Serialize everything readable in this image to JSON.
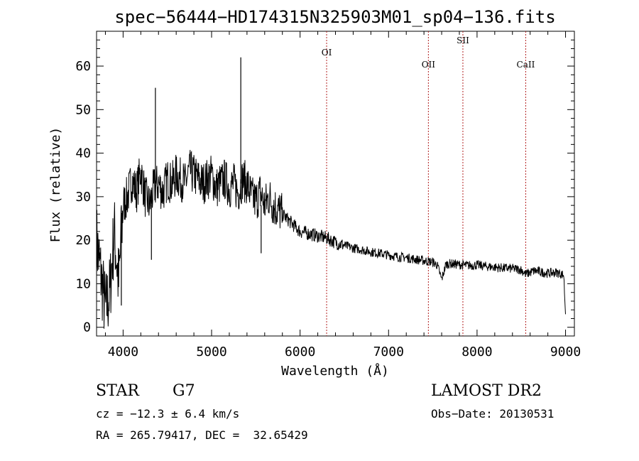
{
  "chart_data": {
    "type": "line",
    "title": "spec−56444−HD174315N325903M01_sp04−136.fits",
    "xlabel": "Wavelength (Å)",
    "ylabel": "Flux (relative)",
    "xlim": [
      3700,
      9100
    ],
    "ylim": [
      -2,
      68
    ],
    "x_ticks": [
      4000,
      5000,
      6000,
      7000,
      8000,
      9000
    ],
    "y_ticks": [
      0,
      10,
      20,
      30,
      40,
      50,
      60
    ],
    "grid": false,
    "series": [
      {
        "x": [
          3700,
          3750,
          3800,
          3850,
          3900,
          3950,
          4000,
          4050,
          4100,
          4150,
          4200,
          4250,
          4300,
          4350,
          4400,
          4450,
          4500,
          4550,
          4600,
          4650,
          4700,
          4750,
          4800,
          4850,
          4900,
          4950,
          5000,
          5050,
          5100,
          5150,
          5200,
          5250,
          5300,
          5350,
          5400,
          5450,
          5500,
          5550,
          5600,
          5650,
          5700,
          5750,
          5800,
          5850,
          5900,
          5950,
          6000,
          6100,
          6200,
          6300,
          6400,
          6500,
          6600,
          6700,
          6800,
          6900,
          7000,
          7100,
          7200,
          7300,
          7400,
          7500,
          7550,
          7600,
          7650,
          7700,
          7800,
          7900,
          8000,
          8100,
          8200,
          8300,
          8400,
          8500,
          8550,
          8600,
          8650,
          8700,
          8800,
          8900,
          8980,
          9000
        ],
        "y": [
          20,
          12,
          4,
          8,
          22,
          10,
          28,
          30,
          34,
          31,
          36,
          30,
          28,
          32,
          33,
          31,
          34,
          33,
          35,
          34,
          33,
          36,
          35,
          34,
          33,
          34,
          35,
          32,
          33,
          34,
          32,
          33,
          31,
          34,
          33,
          30,
          29,
          31,
          28,
          30,
          28,
          27,
          26,
          25,
          24,
          23,
          22,
          21.5,
          21,
          20.5,
          19.5,
          18.8,
          18.2,
          17.8,
          17.3,
          17,
          16.6,
          16.2,
          16,
          15.6,
          15.3,
          15,
          14.3,
          11,
          14.5,
          14.6,
          14.4,
          14.2,
          14.3,
          14,
          13.8,
          13.6,
          13.5,
          13.2,
          12.2,
          12.6,
          13,
          12.8,
          12.4,
          12.6,
          12,
          3
        ]
      }
    ],
    "spikes": [
      {
        "x": 4365,
        "y": 55
      },
      {
        "x": 5330,
        "y": 62
      },
      {
        "x": 4320,
        "y": 15.5
      },
      {
        "x": 3980,
        "y": 5
      },
      {
        "x": 5560,
        "y": 17
      }
    ],
    "lines": [
      {
        "label": "OI",
        "x": 6300
      },
      {
        "label": "OII",
        "x": 7450
      },
      {
        "label": "SII",
        "x": 7840
      },
      {
        "label": "CaII",
        "x": 8550
      }
    ],
    "line_color": "#b22222"
  },
  "info": {
    "class_label": "STAR",
    "subclass": "G7",
    "survey": "LAMOST DR2",
    "cz": "cz = −12.3 ± 6.4 km/s",
    "obs_date": "Obs−Date: 20130531",
    "coords": "RA = 265.79417, DEC =  32.65429"
  }
}
